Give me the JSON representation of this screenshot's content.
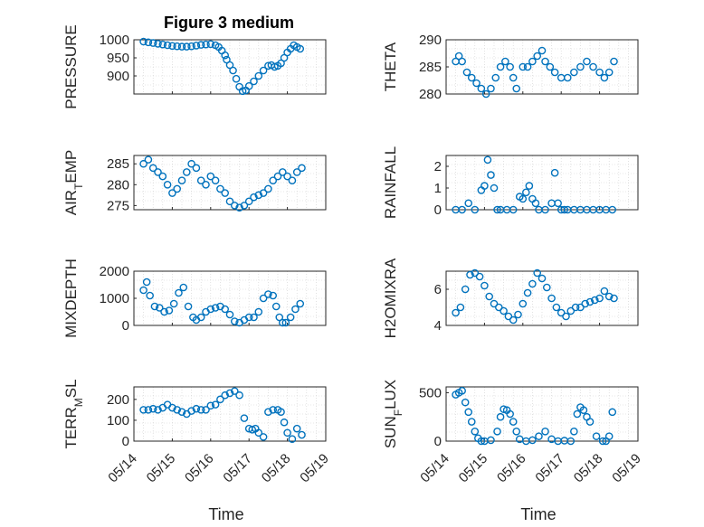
{
  "figure": {
    "title": "Figure 3 medium"
  },
  "colors": {
    "marker": "#0072BD",
    "axis": "#262626",
    "grid": "#d0d0d0",
    "background": "#ffffff"
  },
  "chart_data": [
    {
      "type": "scatter",
      "ylabel": "PRESSURE",
      "ylim": [
        850,
        1000
      ],
      "yticks": [
        900,
        950,
        1000
      ],
      "xlim": [
        "05/14",
        "05/19"
      ],
      "xticks": [
        "05/14",
        "05/15",
        "05/16",
        "05/17",
        "05/18",
        "05/19"
      ],
      "grid": true,
      "title": "Figure 3 medium",
      "xlabel": "",
      "x": [
        "05/14 06:00",
        "05/14 09:00",
        "05/14 12:00",
        "05/14 15:00",
        "05/14 18:00",
        "05/14 21:00",
        "05/15 00:00",
        "05/15 03:00",
        "05/15 06:00",
        "05/15 09:00",
        "05/15 12:00",
        "05/15 15:00",
        "05/15 18:00",
        "05/15 21:00",
        "05/16 00:00",
        "05/16 03:00",
        "05/16 05:00",
        "05/16 07:00",
        "05/16 09:00",
        "05/16 10:00",
        "05/16 12:00",
        "05/16 14:00",
        "05/16 16:00",
        "05/16 18:00",
        "05/16 20:00",
        "05/16 22:00",
        "05/17 00:00",
        "05/17 03:00",
        "05/17 06:00",
        "05/17 09:00",
        "05/17 12:00",
        "05/17 14:00",
        "05/17 16:00",
        "05/17 18:00",
        "05/17 20:00",
        "05/17 22:00",
        "05/18 00:00",
        "05/18 02:00",
        "05/18 04:00",
        "05/18 06:00",
        "05/18 08:00"
      ],
      "y": [
        995,
        993,
        991,
        989,
        987,
        985,
        983,
        982,
        981,
        981,
        982,
        984,
        986,
        987,
        988,
        985,
        980,
        970,
        957,
        945,
        930,
        915,
        892,
        870,
        858,
        860,
        872,
        885,
        900,
        915,
        928,
        930,
        925,
        928,
        935,
        950,
        965,
        975,
        985,
        980,
        975
      ]
    },
    {
      "type": "scatter",
      "ylabel": "THETA",
      "ylim": [
        280,
        290
      ],
      "yticks": [
        280,
        285,
        290
      ],
      "xlim": [
        "05/14",
        "05/19"
      ],
      "xticks": [
        "05/14",
        "05/15",
        "05/16",
        "05/17",
        "05/18",
        "05/19"
      ],
      "grid": true,
      "xlabel": "",
      "x": [
        "05/14 06:00",
        "05/14 08:00",
        "05/14 10:00",
        "05/14 13:00",
        "05/14 16:00",
        "05/14 19:00",
        "05/14 22:00",
        "05/15 01:00",
        "05/15 04:00",
        "05/15 07:00",
        "05/15 10:00",
        "05/15 13:00",
        "05/15 16:00",
        "05/15 18:00",
        "05/15 20:00",
        "05/16 00:00",
        "05/16 03:00",
        "05/16 06:00",
        "05/16 09:00",
        "05/16 12:00",
        "05/16 14:00",
        "05/16 17:00",
        "05/16 20:00",
        "05/17 00:00",
        "05/17 04:00",
        "05/17 08:00",
        "05/17 12:00",
        "05/17 16:00",
        "05/17 20:00",
        "05/18 00:00",
        "05/18 03:00",
        "05/18 06:00",
        "05/18 09:00"
      ],
      "y": [
        286,
        287,
        286,
        284,
        283,
        282,
        281,
        280,
        281,
        283,
        285,
        286,
        285,
        283,
        281,
        285,
        285,
        286,
        287,
        288,
        286,
        285,
        284,
        283,
        283,
        284,
        285,
        286,
        285,
        284,
        283,
        284,
        286
      ]
    },
    {
      "type": "scatter",
      "ylabel": "AIR_TEMP",
      "ylim": [
        274,
        287
      ],
      "yticks": [
        275,
        280,
        285
      ],
      "xlim": [
        "05/14",
        "05/19"
      ],
      "xticks": [
        "05/14",
        "05/15",
        "05/16",
        "05/17",
        "05/18",
        "05/19"
      ],
      "grid": true,
      "xlabel": "",
      "x": [
        "05/14 06:00",
        "05/14 09:00",
        "05/14 12:00",
        "05/14 15:00",
        "05/14 18:00",
        "05/14 21:00",
        "05/15 00:00",
        "05/15 03:00",
        "05/15 06:00",
        "05/15 09:00",
        "05/15 12:00",
        "05/15 15:00",
        "05/15 18:00",
        "05/15 21:00",
        "05/16 00:00",
        "05/16 03:00",
        "05/16 06:00",
        "05/16 09:00",
        "05/16 12:00",
        "05/16 15:00",
        "05/16 18:00",
        "05/16 21:00",
        "05/17 00:00",
        "05/17 03:00",
        "05/17 06:00",
        "05/17 09:00",
        "05/17 12:00",
        "05/17 15:00",
        "05/17 18:00",
        "05/17 21:00",
        "05/18 00:00",
        "05/18 03:00",
        "05/18 06:00",
        "05/18 09:00"
      ],
      "y": [
        285,
        286,
        284,
        283,
        282,
        280,
        278,
        279,
        281,
        283,
        285,
        284,
        281,
        280,
        282,
        281,
        279,
        278,
        276,
        275,
        274.5,
        275,
        276,
        277,
        277.5,
        278,
        279,
        281,
        282,
        283,
        282,
        281,
        283,
        284
      ]
    },
    {
      "type": "scatter",
      "ylabel": "RAINFALL",
      "ylim": [
        0,
        2.5
      ],
      "yticks": [
        0,
        1,
        2
      ],
      "xlim": [
        "05/14",
        "05/19"
      ],
      "xticks": [
        "05/14",
        "05/15",
        "05/16",
        "05/17",
        "05/18",
        "05/19"
      ],
      "grid": true,
      "xlabel": "",
      "x": [
        "05/14 06:00",
        "05/14 10:00",
        "05/14 14:00",
        "05/14 18:00",
        "05/14 22:00",
        "05/15 00:00",
        "05/15 02:00",
        "05/15 04:00",
        "05/15 06:00",
        "05/15 08:00",
        "05/15 10:00",
        "05/15 14:00",
        "05/15 18:00",
        "05/15 22:00",
        "05/16 00:00",
        "05/16 02:00",
        "05/16 04:00",
        "05/16 06:00",
        "05/16 08:00",
        "05/16 10:00",
        "05/16 14:00",
        "05/16 18:00",
        "05/16 20:00",
        "05/16 22:00",
        "05/17 00:00",
        "05/17 02:00",
        "05/17 04:00",
        "05/17 08:00",
        "05/17 12:00",
        "05/17 16:00",
        "05/17 20:00",
        "05/18 00:00",
        "05/18 04:00",
        "05/18 08:00"
      ],
      "y": [
        0,
        0,
        0.3,
        0,
        0.9,
        1.1,
        2.3,
        1.6,
        1.0,
        0,
        0,
        0,
        0,
        0.6,
        0.5,
        0.8,
        1.1,
        0.5,
        0.3,
        0,
        0,
        0.3,
        1.7,
        0.3,
        0,
        0,
        0,
        0,
        0,
        0,
        0,
        0,
        0,
        0
      ]
    },
    {
      "type": "scatter",
      "ylabel": "MIXDEPTH",
      "ylim": [
        0,
        2000
      ],
      "yticks": [
        0,
        1000,
        2000
      ],
      "xlim": [
        "05/14",
        "05/19"
      ],
      "xticks": [
        "05/14",
        "05/15",
        "05/16",
        "05/17",
        "05/18",
        "05/19"
      ],
      "grid": true,
      "xlabel": "",
      "x": [
        "05/14 06:00",
        "05/14 08:00",
        "05/14 10:00",
        "05/14 13:00",
        "05/14 16:00",
        "05/14 19:00",
        "05/14 22:00",
        "05/15 01:00",
        "05/15 04:00",
        "05/15 07:00",
        "05/15 10:00",
        "05/15 13:00",
        "05/15 15:00",
        "05/15 18:00",
        "05/15 21:00",
        "05/16 00:00",
        "05/16 03:00",
        "05/16 06:00",
        "05/16 09:00",
        "05/16 12:00",
        "05/16 15:00",
        "05/16 18:00",
        "05/16 21:00",
        "05/17 00:00",
        "05/17 03:00",
        "05/17 06:00",
        "05/17 09:00",
        "05/17 12:00",
        "05/17 15:00",
        "05/17 17:00",
        "05/17 19:00",
        "05/17 21:00",
        "05/17 23:00",
        "05/18 02:00",
        "05/18 05:00",
        "05/18 08:00"
      ],
      "y": [
        1300,
        1600,
        1100,
        700,
        650,
        500,
        550,
        800,
        1200,
        1400,
        700,
        300,
        200,
        300,
        500,
        600,
        650,
        700,
        600,
        400,
        150,
        100,
        200,
        300,
        300,
        500,
        1000,
        1150,
        1100,
        700,
        300,
        100,
        100,
        300,
        600,
        800
      ]
    },
    {
      "type": "scatter",
      "ylabel": "H2OMIXRA",
      "ylim": [
        4,
        7
      ],
      "yticks": [
        4,
        6
      ],
      "xlim": [
        "05/14",
        "05/19"
      ],
      "xticks": [
        "05/14",
        "05/15",
        "05/16",
        "05/17",
        "05/18",
        "05/19"
      ],
      "grid": true,
      "xlabel": "",
      "x": [
        "05/14 06:00",
        "05/14 09:00",
        "05/14 12:00",
        "05/14 15:00",
        "05/14 18:00",
        "05/14 21:00",
        "05/15 00:00",
        "05/15 03:00",
        "05/15 06:00",
        "05/15 09:00",
        "05/15 12:00",
        "05/15 15:00",
        "05/15 18:00",
        "05/15 21:00",
        "05/16 00:00",
        "05/16 03:00",
        "05/16 06:00",
        "05/16 09:00",
        "05/16 12:00",
        "05/16 15:00",
        "05/16 18:00",
        "05/16 21:00",
        "05/17 00:00",
        "05/17 03:00",
        "05/17 06:00",
        "05/17 09:00",
        "05/17 12:00",
        "05/17 15:00",
        "05/17 18:00",
        "05/17 21:00",
        "05/18 00:00",
        "05/18 03:00",
        "05/18 06:00",
        "05/18 09:00"
      ],
      "y": [
        4.7,
        5.0,
        6.0,
        6.8,
        6.9,
        6.7,
        6.2,
        5.6,
        5.2,
        5.0,
        4.8,
        4.5,
        4.3,
        4.6,
        5.2,
        5.8,
        6.3,
        6.9,
        6.6,
        6.1,
        5.5,
        5.0,
        4.7,
        4.5,
        4.8,
        5.0,
        5.0,
        5.2,
        5.3,
        5.4,
        5.5,
        5.9,
        5.6,
        5.5
      ]
    },
    {
      "type": "scatter",
      "ylabel": "TERR_MSL",
      "ylim": [
        0,
        260
      ],
      "yticks": [
        0,
        100,
        200
      ],
      "xlim": [
        "05/14",
        "05/19"
      ],
      "xticks": [
        "05/14",
        "05/15",
        "05/16",
        "05/17",
        "05/18",
        "05/19"
      ],
      "grid": true,
      "xlabel": "Time",
      "x": [
        "05/14 06:00",
        "05/14 09:00",
        "05/14 12:00",
        "05/14 15:00",
        "05/14 18:00",
        "05/14 21:00",
        "05/15 00:00",
        "05/15 03:00",
        "05/15 06:00",
        "05/15 09:00",
        "05/15 12:00",
        "05/15 15:00",
        "05/15 18:00",
        "05/15 21:00",
        "05/16 00:00",
        "05/16 03:00",
        "05/16 06:00",
        "05/16 09:00",
        "05/16 12:00",
        "05/16 15:00",
        "05/16 18:00",
        "05/16 21:00",
        "05/17 00:00",
        "05/17 02:00",
        "05/17 04:00",
        "05/17 06:00",
        "05/17 09:00",
        "05/17 12:00",
        "05/17 15:00",
        "05/17 18:00",
        "05/17 20:00",
        "05/17 22:00",
        "05/18 00:00",
        "05/18 03:00",
        "05/18 06:00",
        "05/18 09:00"
      ],
      "y": [
        150,
        150,
        155,
        150,
        160,
        175,
        160,
        150,
        140,
        130,
        145,
        155,
        150,
        150,
        170,
        175,
        200,
        220,
        230,
        240,
        220,
        110,
        60,
        55,
        60,
        40,
        20,
        140,
        150,
        150,
        140,
        90,
        40,
        10,
        60,
        30
      ]
    },
    {
      "type": "scatter",
      "ylabel": "SUN_FLUX",
      "ylim": [
        0,
        560
      ],
      "yticks": [
        0,
        500
      ],
      "xlim": [
        "05/14",
        "05/19"
      ],
      "xticks": [
        "05/14",
        "05/15",
        "05/16",
        "05/17",
        "05/18",
        "05/19"
      ],
      "grid": true,
      "xlabel": "Time",
      "x": [
        "05/14 06:00",
        "05/14 08:00",
        "05/14 10:00",
        "05/14 12:00",
        "05/14 14:00",
        "05/14 16:00",
        "05/14 18:00",
        "05/14 20:00",
        "05/14 22:00",
        "05/15 00:00",
        "05/15 04:00",
        "05/15 08:00",
        "05/15 10:00",
        "05/15 12:00",
        "05/15 14:00",
        "05/15 16:00",
        "05/15 18:00",
        "05/15 20:00",
        "05/15 22:00",
        "05/16 02:00",
        "05/16 06:00",
        "05/16 10:00",
        "05/16 14:00",
        "05/16 18:00",
        "05/16 22:00",
        "05/17 02:00",
        "05/17 06:00",
        "05/17 08:00",
        "05/17 10:00",
        "05/17 12:00",
        "05/17 14:00",
        "05/17 16:00",
        "05/17 18:00",
        "05/17 22:00",
        "05/18 02:00",
        "05/18 04:00",
        "05/18 06:00",
        "05/18 08:00"
      ],
      "y": [
        480,
        500,
        520,
        400,
        300,
        200,
        100,
        30,
        0,
        0,
        10,
        100,
        250,
        330,
        320,
        280,
        200,
        100,
        20,
        0,
        10,
        50,
        100,
        20,
        0,
        5,
        0,
        100,
        280,
        350,
        320,
        250,
        200,
        50,
        0,
        0,
        50,
        300
      ]
    }
  ]
}
